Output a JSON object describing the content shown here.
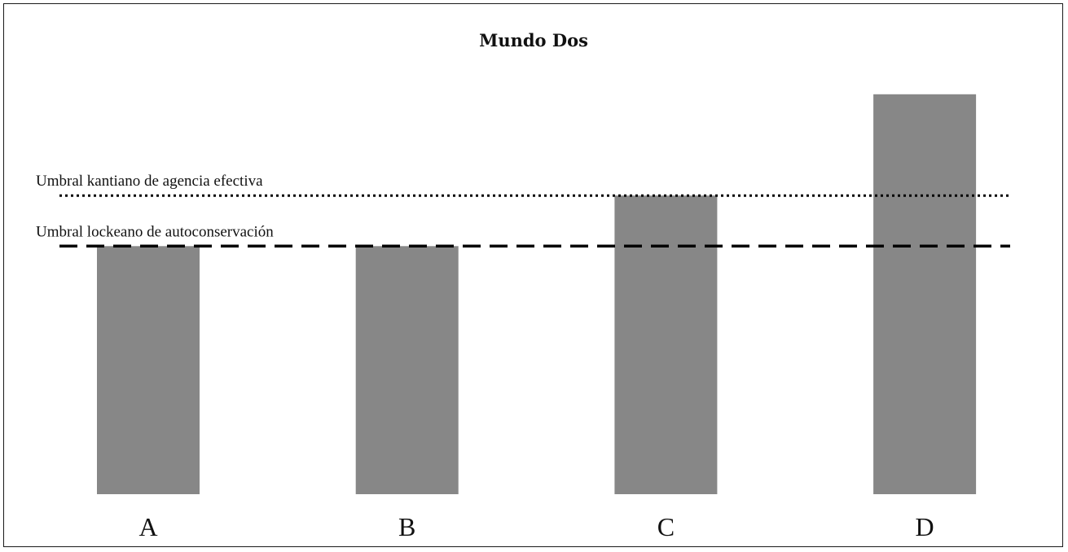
{
  "chart_data": {
    "type": "bar",
    "title": "Mundo Dos",
    "categories": [
      "A",
      "B",
      "C",
      "D"
    ],
    "values": [
      2.45,
      2.45,
      2.95,
      3.95
    ],
    "ylim": [
      0,
      4.6
    ],
    "grid": false,
    "bar_color": "#878787",
    "thresholds": [
      {
        "label": "Umbral kantiano de agencia efectiva",
        "value": 2.95,
        "style": "dotted"
      },
      {
        "label": "Umbral lockeano de autoconservación",
        "value": 2.45,
        "style": "dashed"
      }
    ]
  }
}
